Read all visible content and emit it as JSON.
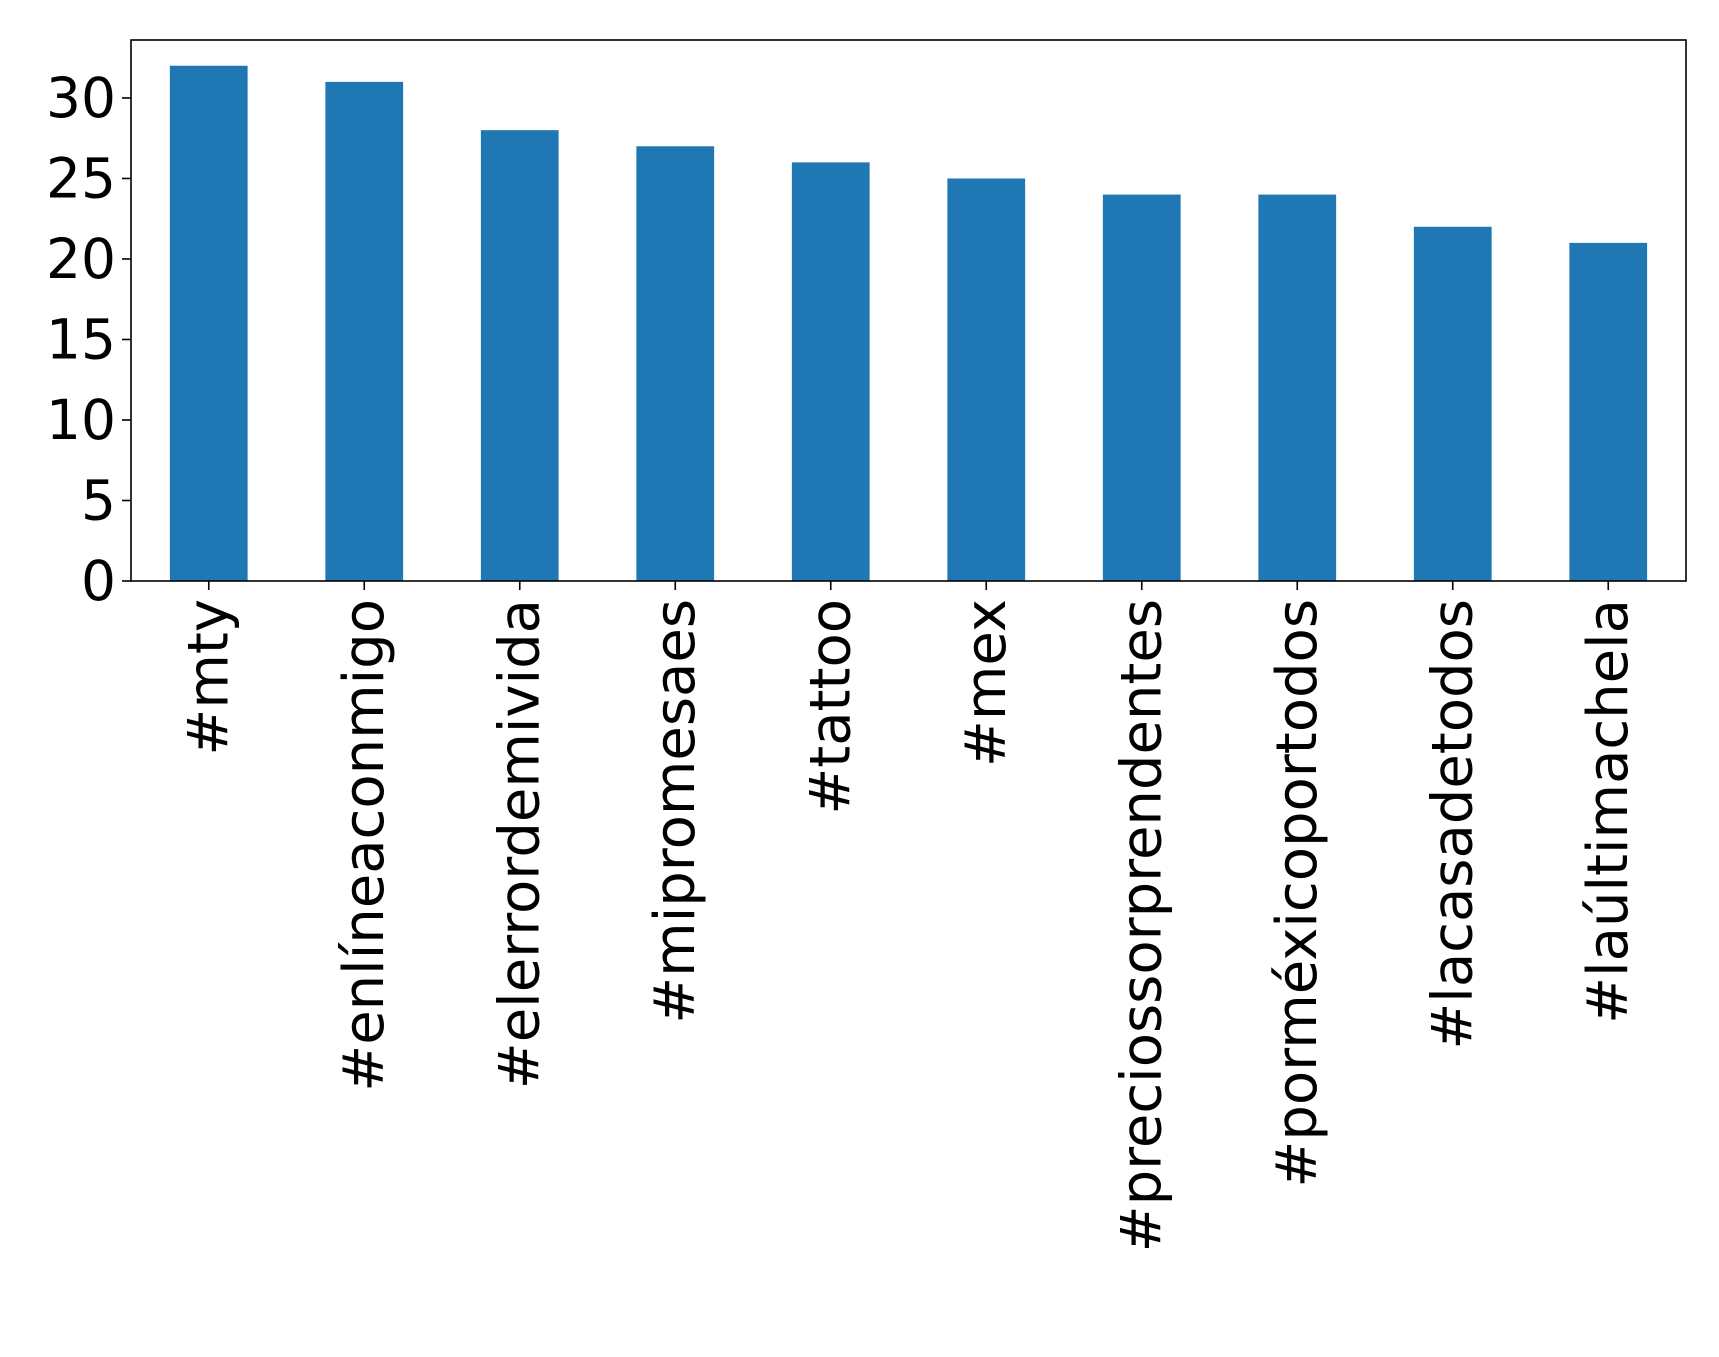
{
  "chart_data": {
    "type": "bar",
    "categories": [
      "#mty",
      "#enlíneaconmigo",
      "#elerrordemivida",
      "#mipromesaes",
      "#tattoo",
      "#mex",
      "#preciossorprendentes",
      "#porméxicoportodos",
      "#lacasadetodos",
      "#laúltimachela"
    ],
    "values": [
      32,
      31,
      28,
      27,
      26,
      25,
      24,
      24,
      22,
      21
    ],
    "yticks": [
      0,
      5,
      10,
      15,
      20,
      25,
      30
    ],
    "ylim": [
      0,
      33.6
    ],
    "title": "",
    "xlabel": "",
    "ylabel": "",
    "grid": false,
    "bar_color": "#1f77b4",
    "frame_color": "#000000"
  }
}
